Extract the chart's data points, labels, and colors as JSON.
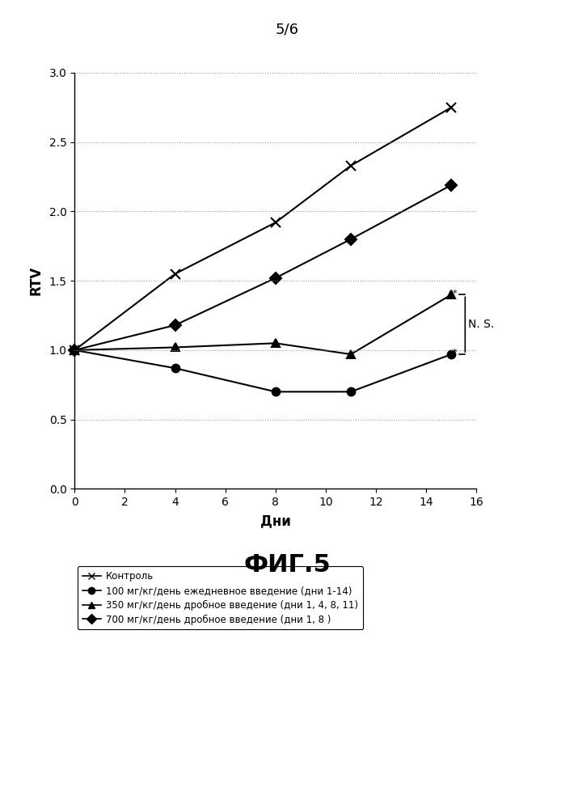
{
  "title_top": "5/6",
  "fig_label": "ФИГ.5",
  "ylabel": "RTV",
  "xlabel": "Дни",
  "xlim": [
    0,
    16
  ],
  "ylim": [
    0.0,
    3.0
  ],
  "xticks": [
    0,
    2,
    4,
    6,
    8,
    10,
    12,
    14,
    16
  ],
  "yticks": [
    0.0,
    0.5,
    1.0,
    1.5,
    2.0,
    2.5,
    3.0
  ],
  "series": [
    {
      "label": "Контроль",
      "x": [
        0,
        4,
        8,
        11,
        15
      ],
      "y": [
        1.0,
        1.55,
        1.92,
        2.33,
        2.75
      ],
      "color": "#000000",
      "marker": "x",
      "linewidth": 1.5,
      "markersize": 8,
      "markerfacecolor": "none"
    },
    {
      "label": "100 мг/кг/день ежедневное введение (дни 1-14)",
      "x": [
        0,
        4,
        8,
        11,
        15
      ],
      "y": [
        1.0,
        0.87,
        0.7,
        0.7,
        0.97
      ],
      "color": "#000000",
      "marker": "o",
      "linewidth": 1.5,
      "markersize": 7,
      "markerfacecolor": "#000000"
    },
    {
      "label": "350 мг/кг/день дробное введение (дни 1, 4, 8, 11)",
      "x": [
        0,
        4,
        8,
        11,
        15
      ],
      "y": [
        1.0,
        1.02,
        1.05,
        0.97,
        1.4
      ],
      "color": "#000000",
      "marker": "^",
      "linewidth": 1.5,
      "markersize": 7,
      "markerfacecolor": "#000000"
    },
    {
      "label": "700 мг/кг/день дробное введение (дни 1, 8 )",
      "x": [
        0,
        4,
        8,
        11,
        15
      ],
      "y": [
        1.0,
        1.18,
        1.52,
        1.8,
        2.19
      ],
      "color": "#000000",
      "marker": "D",
      "linewidth": 1.5,
      "markersize": 7,
      "markerfacecolor": "#000000"
    }
  ],
  "ns_bracket_y_top": 1.4,
  "ns_bracket_y_bot": 0.97,
  "ns_bracket_x": 15.25,
  "ns_text": "N. S.",
  "background_color": "#ffffff",
  "grid_color": "#999999",
  "grid_linestyle": ":"
}
